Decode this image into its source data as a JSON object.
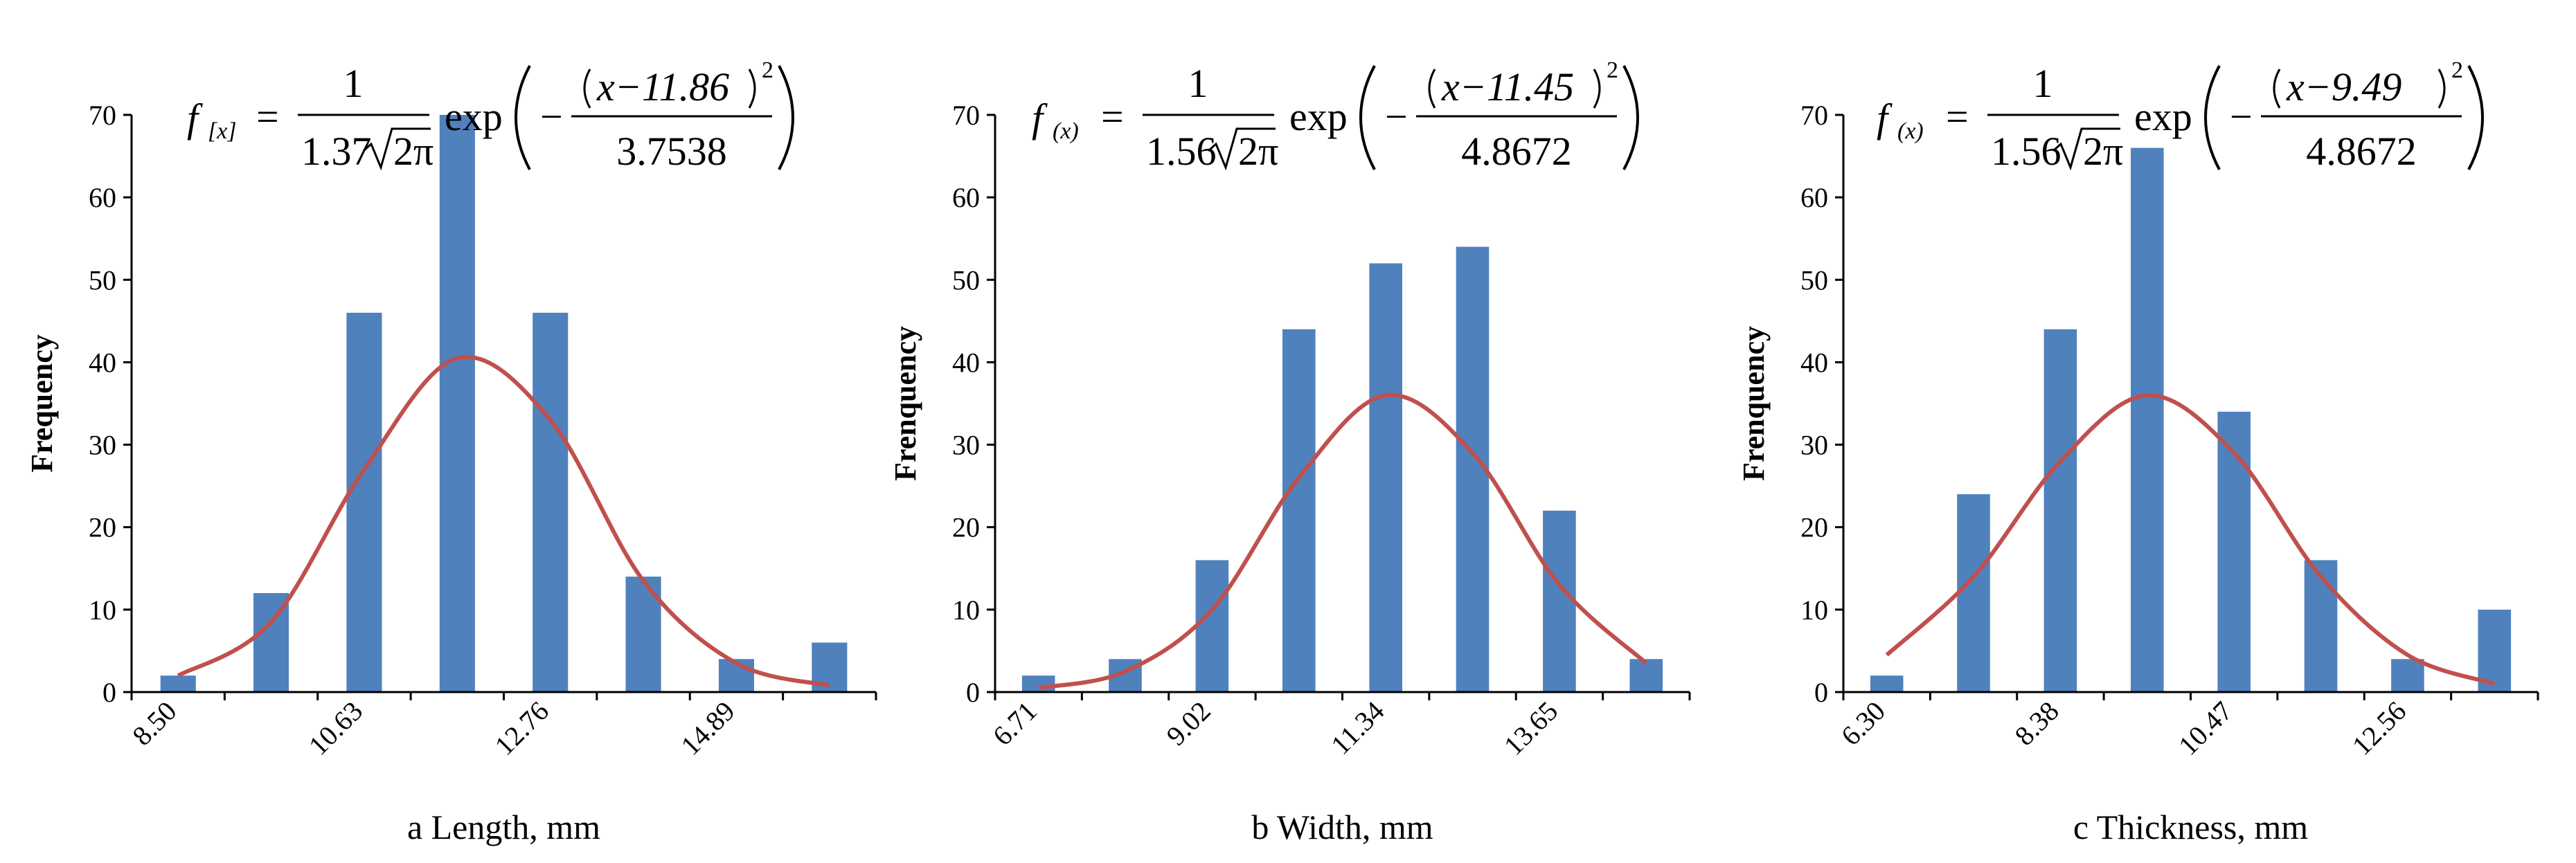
{
  "colors": {
    "bar": "#4f81bd",
    "curve": "#c0504d",
    "axis": "#000000"
  },
  "chart_data": [
    {
      "type": "bar",
      "title": "",
      "xlabel": "a Length, mm",
      "ylabel": "Frequency",
      "ylim": [
        0,
        70
      ],
      "yticks": [
        "0",
        "10",
        "20",
        "30",
        "40",
        "50",
        "60",
        "70"
      ],
      "xtick_labels": [
        "8.50",
        "10.63",
        "12.76",
        "14.89"
      ],
      "values": [
        2,
        12,
        46,
        70,
        46,
        14,
        4,
        6
      ],
      "curve": [
        2,
        8.5,
        27,
        40.5,
        33,
        13.5,
        3.5,
        0.8
      ],
      "equation": {
        "f": "f",
        "x": "x",
        "numer": "1",
        "coef": "1.37",
        "sqrt": "2π",
        "exp": "exp",
        "shift": "x−11.86",
        "pow": "2",
        "denom": "3.7538"
      }
    },
    {
      "type": "bar",
      "title": "",
      "xlabel": "b Width, mm",
      "ylabel": "Frenquency",
      "ylim": [
        0,
        70
      ],
      "yticks": [
        "0",
        "10",
        "20",
        "30",
        "40",
        "50",
        "60",
        "70"
      ],
      "xtick_labels": [
        "6.71",
        "9.02",
        "11.34",
        "13.65"
      ],
      "values": [
        2,
        4,
        16,
        44,
        52,
        54,
        22,
        4
      ],
      "curve": [
        0.5,
        2.5,
        10,
        26,
        36,
        29,
        13,
        3.5
      ],
      "equation": {
        "f": "f",
        "x": "x",
        "numer": "1",
        "coef": "1.56",
        "sqrt": "2π",
        "exp": "exp",
        "shift": "x−11.45",
        "pow": "2",
        "denom": "4.8672"
      }
    },
    {
      "type": "bar",
      "title": "",
      "xlabel": "c Thickness, mm",
      "ylabel": "Frenquency",
      "ylim": [
        0,
        70
      ],
      "yticks": [
        "0",
        "10",
        "20",
        "30",
        "40",
        "50",
        "60",
        "70"
      ],
      "xtick_labels": [
        "6.30",
        "8.38",
        "10.47",
        "12.56"
      ],
      "values": [
        2,
        24,
        44,
        66,
        34,
        16,
        4,
        10
      ],
      "curve": [
        4.5,
        14,
        28,
        36,
        29,
        14,
        4.5,
        1
      ],
      "equation": {
        "f": "f",
        "x": "x",
        "numer": "1",
        "coef": "1.56",
        "sqrt": "2π",
        "exp": "exp",
        "shift": "x−9.49",
        "pow": "2",
        "denom": "4.8672"
      }
    }
  ]
}
